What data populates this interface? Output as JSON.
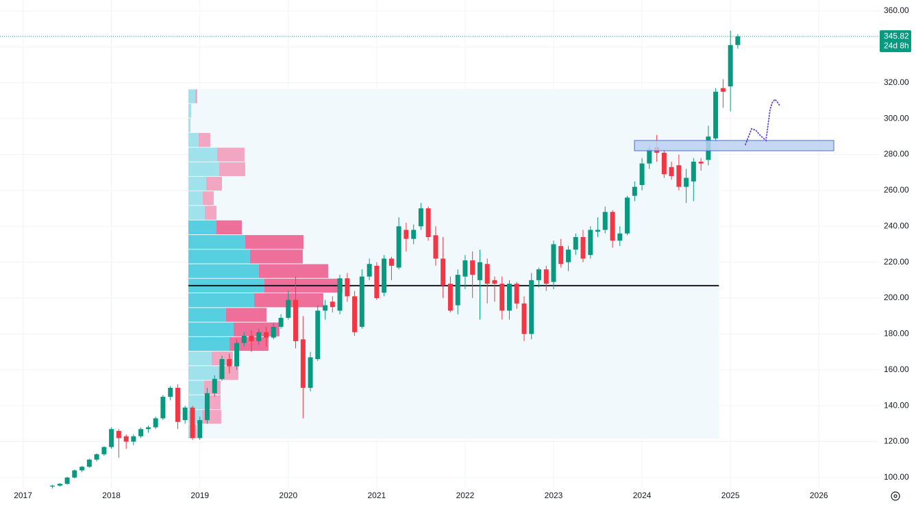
{
  "chart_data": {
    "type": "candlestick",
    "x": [
      2017.333,
      2017.417,
      2017.5,
      2017.583,
      2017.667,
      2017.75,
      2017.833,
      2017.917,
      2018,
      2018.083,
      2018.167,
      2018.25,
      2018.333,
      2018.417,
      2018.5,
      2018.583,
      2018.667,
      2018.75,
      2018.833,
      2018.917,
      2019,
      2019.083,
      2019.167,
      2019.25,
      2019.333,
      2019.417,
      2019.5,
      2019.583,
      2019.667,
      2019.75,
      2019.833,
      2019.917,
      2020,
      2020.083,
      2020.167,
      2020.25,
      2020.333,
      2020.417,
      2020.5,
      2020.583,
      2020.667,
      2020.75,
      2020.833,
      2020.917,
      2021,
      2021.083,
      2021.167,
      2021.25,
      2021.333,
      2021.417,
      2021.5,
      2021.583,
      2021.667,
      2021.75,
      2021.833,
      2021.917,
      2022,
      2022.083,
      2022.167,
      2022.25,
      2022.333,
      2022.417,
      2022.5,
      2022.583,
      2022.667,
      2022.75,
      2022.833,
      2022.917,
      2023,
      2023.083,
      2023.167,
      2023.25,
      2023.333,
      2023.417,
      2023.5,
      2023.583,
      2023.667,
      2023.75,
      2023.833,
      2023.917,
      2024,
      2024.083,
      2024.167,
      2024.25,
      2024.333,
      2024.417,
      2024.5,
      2024.583,
      2024.667,
      2024.75,
      2024.833,
      2024.917,
      2025,
      2025.083
    ],
    "open": [
      95,
      95.5,
      96.5,
      100,
      104,
      106,
      110,
      113,
      117,
      126,
      123,
      120,
      123,
      127,
      128,
      133,
      145,
      150,
      132,
      139,
      122,
      132,
      147,
      155,
      166,
      162,
      175,
      179,
      176,
      181,
      178,
      184,
      189,
      199,
      177,
      150,
      166,
      193,
      198,
      193,
      211,
      201,
      184,
      212,
      218,
      203,
      222,
      217,
      238,
      233,
      240,
      250,
      235,
      222,
      208,
      196,
      212,
      221,
      210,
      219,
      210,
      208,
      193,
      208,
      197,
      180,
      210,
      216,
      209,
      229,
      220,
      227,
      234,
      224,
      237,
      238,
      248,
      232,
      236,
      257,
      263,
      275,
      284,
      281,
      273,
      274,
      262,
      265,
      276,
      277,
      289,
      317,
      318,
      341
    ],
    "high": [
      96,
      97,
      100.5,
      104.5,
      106.5,
      110.5,
      113.5,
      117.5,
      128,
      127,
      124,
      124,
      128,
      129,
      134,
      146,
      151,
      152,
      140,
      140,
      134,
      150,
      157,
      168,
      169,
      177,
      181,
      182,
      183,
      184,
      186,
      191,
      204,
      212,
      190,
      170,
      196,
      199,
      201,
      213,
      214,
      204,
      216,
      222,
      220,
      224,
      223,
      245,
      242,
      241,
      253,
      251,
      240,
      234,
      212,
      216,
      224,
      226,
      227,
      222,
      212,
      212,
      210,
      209,
      201,
      214,
      217,
      218,
      232,
      233,
      229,
      236,
      238,
      240,
      245,
      251,
      249,
      240,
      257,
      265,
      278,
      285,
      291,
      283,
      276,
      280,
      272,
      278,
      278,
      296,
      317,
      322,
      349,
      347
    ],
    "low": [
      94,
      95,
      96,
      99.5,
      103,
      105.5,
      109,
      112,
      116,
      111,
      116,
      118,
      122,
      125,
      127,
      132,
      143,
      127,
      130,
      121,
      121,
      130,
      145,
      154,
      158,
      160,
      173,
      170,
      174,
      173,
      177,
      183,
      188,
      172,
      133,
      148,
      165,
      188,
      192,
      191,
      198,
      179,
      183,
      210,
      199,
      201,
      210,
      216,
      226,
      230,
      238,
      232,
      218,
      200,
      192,
      191,
      205,
      200,
      188,
      197,
      198,
      188,
      188,
      194,
      176,
      177,
      206,
      204,
      205,
      217,
      215,
      224,
      220,
      222,
      234,
      236,
      228,
      229,
      235,
      254,
      260,
      272,
      276,
      267,
      266,
      260,
      253,
      254,
      271,
      274,
      287,
      306,
      304,
      339
    ],
    "close": [
      95.5,
      96.5,
      100,
      104,
      106,
      110,
      113,
      117,
      127,
      122,
      120,
      123,
      127,
      128,
      133,
      145,
      150,
      131,
      139,
      122,
      132,
      147,
      155,
      166,
      162,
      175,
      179,
      176,
      181,
      178,
      184,
      189,
      199,
      176,
      150,
      167,
      193,
      196,
      195,
      211,
      201,
      181,
      212,
      219,
      200,
      222,
      218,
      240,
      233,
      238,
      250,
      234,
      222,
      207,
      193,
      213,
      221,
      213,
      220,
      208,
      208,
      193,
      208,
      197,
      180,
      210,
      216,
      208,
      230,
      219,
      227,
      234,
      222,
      238,
      238,
      248,
      232,
      236,
      256,
      262,
      275,
      283,
      281,
      269,
      268,
      262,
      267,
      276,
      275,
      290,
      315,
      315,
      341,
      345.82
    ],
    "up_color": "#089981",
    "down_color": "#f23645",
    "countdown": "24d 8h",
    "xlim": [
      2016.74,
      2026.68
    ],
    "xticks": [
      2017,
      2018,
      2019,
      2020,
      2021,
      2022,
      2023,
      2024,
      2025,
      2026
    ],
    "ylim": [
      94.25,
      366.1
    ],
    "yticks": [
      {
        "value": 100,
        "label": "100.00"
      },
      {
        "value": 120,
        "label": "120.00"
      },
      {
        "value": 140,
        "label": "140.00"
      },
      {
        "value": 160,
        "label": "160.00"
      },
      {
        "value": 180,
        "label": "180.00"
      },
      {
        "value": 200,
        "label": "200.00"
      },
      {
        "value": 220,
        "label": "220.00"
      },
      {
        "value": 240,
        "label": "240.00"
      },
      {
        "value": 260,
        "label": "260.00"
      },
      {
        "value": 280,
        "label": "280.00"
      },
      {
        "value": 300,
        "label": "300.00"
      },
      {
        "value": 320,
        "label": "320.00"
      },
      {
        "value": 340,
        "label": "340.00"
      },
      {
        "value": 360,
        "label": "360.00"
      }
    ],
    "grid": true,
    "volume_profile": {
      "start": 2018.87,
      "end": 2024.87,
      "bins": [
        121.7,
        129.8,
        137.9,
        146.1,
        154.2,
        162.3,
        170.4,
        178.5,
        186.6,
        194.7,
        202.9,
        211.0,
        219.1,
        227.2,
        235.3,
        243.5,
        251.6,
        259.7,
        267.8,
        275.9,
        284.0,
        292.2,
        300.3,
        308.4,
        316.5
      ],
      "up": [
        4,
        20,
        28,
        23,
        44,
        34,
        60,
        66,
        55,
        96,
        111,
        103,
        90,
        83,
        41,
        24,
        21,
        26,
        45,
        42,
        15,
        3,
        4,
        10
      ],
      "down": [
        8,
        28,
        19,
        24,
        29,
        31,
        57,
        67,
        59,
        101,
        114,
        101,
        77,
        85,
        37,
        17,
        16,
        23,
        38,
        40,
        17,
        0,
        0,
        3
      ],
      "value_area": [
        170.4,
        243.5
      ],
      "up_color": "#56cfe1",
      "down_color": "#ee6f9a",
      "up_color_outside": "#9fe2ec",
      "down_color_outside": "#f2a6c2",
      "background": "#f1f9fd",
      "poc_color": "#131722"
    }
  }
}
